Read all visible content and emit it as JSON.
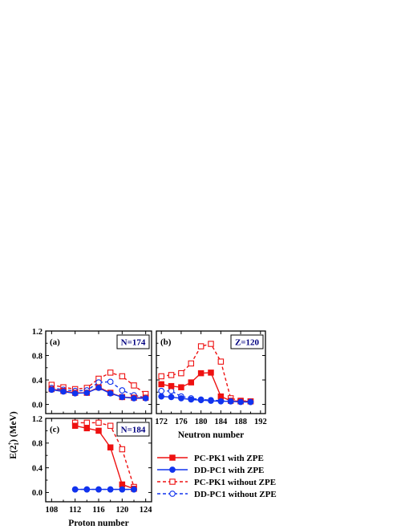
{
  "figure": {
    "ylabel_prefix": "E(2",
    "ylabel_sup": "+",
    "ylabel_sub": "1",
    "ylabel_suffix": ") (MeV)"
  },
  "colors": {
    "red": "#ee1111",
    "blue": "#1133ee",
    "box_text": "#000080"
  },
  "legend": {
    "placement": "bottom-right",
    "entries": [
      {
        "label": "PC-PK1 with ZPE",
        "color": "#ee1111",
        "line": "solid",
        "marker": "filled-square"
      },
      {
        "label": "DD-PC1 with ZPE",
        "color": "#1133ee",
        "line": "solid",
        "marker": "filled-circle"
      },
      {
        "label": "PC-PK1 without ZPE",
        "color": "#ee1111",
        "line": "dashed",
        "marker": "open-square"
      },
      {
        "label": "DD-PC1 without ZPE",
        "color": "#1133ee",
        "line": "dashed",
        "marker": "open-circle"
      }
    ]
  },
  "chart_data": [
    {
      "type": "line",
      "panel": "(a)",
      "annotation": "N=174",
      "xlabel": "",
      "ylabel": "E(2+1) (MeV)",
      "xlim": [
        107,
        125
      ],
      "ylim": [
        -0.15,
        1.2
      ],
      "xticks": [
        108,
        112,
        116,
        120,
        124
      ],
      "yticks": [
        0.0,
        0.4,
        0.8,
        1.2
      ],
      "ytick_labels": [
        "0.0",
        "0.4",
        "0.8",
        "1.2"
      ],
      "show_x_tick_labels": false,
      "show_y_tick_labels": true,
      "series": [
        {
          "name": "PC-PK1 without ZPE",
          "x": [
            108,
            110,
            112,
            114,
            116,
            118,
            120,
            122,
            124
          ],
          "values": [
            0.32,
            0.28,
            0.25,
            0.27,
            0.42,
            0.52,
            0.46,
            0.31,
            0.17
          ]
        },
        {
          "name": "DD-PC1 without ZPE",
          "x": [
            108,
            110,
            112,
            114,
            116,
            118,
            120,
            122,
            124
          ],
          "values": [
            0.27,
            0.24,
            0.22,
            0.23,
            0.36,
            0.37,
            0.23,
            0.15,
            0.11
          ]
        },
        {
          "name": "PC-PK1 with ZPE",
          "x": [
            108,
            110,
            112,
            114,
            116,
            118,
            120,
            122,
            124
          ],
          "values": [
            0.25,
            0.22,
            0.19,
            0.19,
            0.28,
            0.19,
            0.12,
            0.11,
            0.11
          ]
        },
        {
          "name": "DD-PC1 with ZPE",
          "x": [
            108,
            110,
            112,
            114,
            116,
            118,
            120,
            122,
            124
          ],
          "values": [
            0.24,
            0.21,
            0.18,
            0.19,
            0.27,
            0.18,
            0.12,
            0.1,
            0.1
          ]
        }
      ]
    },
    {
      "type": "line",
      "panel": "(b)",
      "annotation": "Z=120",
      "xlabel": "Neutron number",
      "ylabel": "",
      "xlim": [
        171,
        193
      ],
      "ylim": [
        -0.15,
        1.2
      ],
      "xticks": [
        172,
        176,
        180,
        184,
        188,
        192
      ],
      "yticks": [
        0.0,
        0.4,
        0.8,
        1.2
      ],
      "ytick_labels": [
        "0.0",
        "0.4",
        "0.8",
        "1.2"
      ],
      "show_x_tick_labels": true,
      "show_y_tick_labels": false,
      "series": [
        {
          "name": "PC-PK1 without ZPE",
          "x": [
            172,
            174,
            176,
            178,
            180,
            182,
            184,
            186,
            188,
            190
          ],
          "values": [
            0.46,
            0.48,
            0.51,
            0.67,
            0.95,
            0.99,
            0.7,
            0.1,
            0.06,
            0.05
          ]
        },
        {
          "name": "PC-PK1 with ZPE",
          "x": [
            172,
            174,
            176,
            178,
            180,
            182,
            184,
            186,
            188,
            190
          ],
          "values": [
            0.33,
            0.3,
            0.28,
            0.36,
            0.51,
            0.52,
            0.13,
            0.06,
            0.05,
            0.05
          ]
        },
        {
          "name": "DD-PC1 without ZPE",
          "x": [
            172,
            174,
            176,
            178,
            180,
            182,
            184,
            186,
            188,
            190
          ],
          "values": [
            0.22,
            0.22,
            0.13,
            0.1,
            0.08,
            0.07,
            0.06,
            0.05,
            0.05,
            0.04
          ]
        },
        {
          "name": "DD-PC1 with ZPE",
          "x": [
            172,
            174,
            176,
            178,
            180,
            182,
            184,
            186,
            188,
            190
          ],
          "values": [
            0.13,
            0.12,
            0.1,
            0.08,
            0.07,
            0.06,
            0.05,
            0.05,
            0.04,
            0.04
          ]
        }
      ]
    },
    {
      "type": "line",
      "panel": "(c)",
      "annotation": "N=184",
      "xlabel": "Proton number",
      "ylabel": "",
      "xlim": [
        107,
        125
      ],
      "ylim": [
        -0.15,
        1.2
      ],
      "xticks": [
        108,
        112,
        116,
        120,
        124
      ],
      "yticks": [
        0.0,
        0.4,
        0.8,
        1.2
      ],
      "ytick_labels": [
        "0.0",
        "0.4",
        "0.8",
        "1.2"
      ],
      "show_x_tick_labels": true,
      "show_y_tick_labels": true,
      "series": [
        {
          "name": "PC-PK1 without ZPE",
          "x": [
            112,
            114,
            116,
            118,
            120,
            122
          ],
          "values": [
            1.13,
            1.13,
            1.13,
            1.08,
            0.7,
            0.09
          ]
        },
        {
          "name": "PC-PK1 with ZPE",
          "x": [
            112,
            114,
            116,
            118,
            120,
            122
          ],
          "values": [
            1.08,
            1.04,
            1.0,
            0.73,
            0.13,
            0.06
          ]
        },
        {
          "name": "DD-PC1 without ZPE",
          "x": [
            112,
            114,
            116,
            118,
            120,
            122
          ],
          "values": [
            0.05,
            0.05,
            0.05,
            0.05,
            0.05,
            0.05
          ]
        },
        {
          "name": "DD-PC1 with ZPE",
          "x": [
            112,
            114,
            116,
            118,
            120,
            122
          ],
          "values": [
            0.05,
            0.05,
            0.05,
            0.05,
            0.05,
            0.05
          ]
        }
      ]
    }
  ]
}
